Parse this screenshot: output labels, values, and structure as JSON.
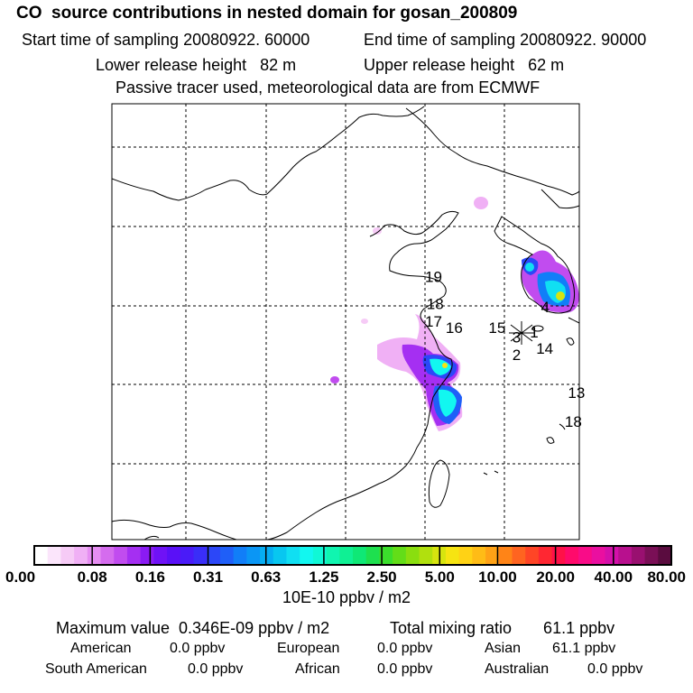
{
  "header": {
    "title": "CO  source contributions in nested domain for gosan_200809",
    "start": "Start time of sampling 20080922. 60000",
    "end": "End time of sampling 20080922. 90000",
    "lower": "Lower release height   82 m",
    "upper": "Upper release height   62 m",
    "tracer": "Passive tracer used, meteorological data are from ECMWF"
  },
  "chart_data": {
    "type": "heatmap",
    "title": "CO  source contributions in nested domain for gosan_200809",
    "colorbar": {
      "unit_label": "10E-10 ppbv / m2",
      "tick_labels": [
        "0.00",
        "0.08",
        "0.16",
        "0.31",
        "0.63",
        "1.25",
        "2.50",
        "5.00",
        "10.00",
        "20.00",
        "40.00",
        "80.00"
      ],
      "colors": [
        "#ffffff",
        "#fbe5fb",
        "#f6cbf6",
        "#f0b0f5",
        "#e68ef2",
        "#d56cee",
        "#c14cef",
        "#a52ff2",
        "#8a1bf4",
        "#6f12f6",
        "#5a10f7",
        "#4a1bf8",
        "#3a2ef8",
        "#2c47f8",
        "#1f5ff8",
        "#117ef8",
        "#0a96f5",
        "#06adf3",
        "#08c7f0",
        "#10dff2",
        "#12f7f0",
        "#10f8d6",
        "#10f5b0",
        "#0ff094",
        "#0fe876",
        "#1ee04f",
        "#3bde2c",
        "#63dd18",
        "#8ade0f",
        "#b1e00e",
        "#d7e40f",
        "#f6e412",
        "#ffd215",
        "#ffbc16",
        "#ffa216",
        "#ff8417",
        "#ff6420",
        "#ff4526",
        "#ff2732",
        "#ff1148",
        "#ff0a6b",
        "#f90c88",
        "#ea0fa0",
        "#d410aa",
        "#b8108e",
        "#991070",
        "#7a0f56",
        "#5a0c3f"
      ]
    },
    "markers": [
      {
        "label": "19",
        "lon": 120.0,
        "lat": 36.5
      },
      {
        "label": "18",
        "lon": 120.1,
        "lat": 34.8
      },
      {
        "label": "17",
        "lon": 120.0,
        "lat": 33.7
      },
      {
        "label": "16",
        "lon": 121.3,
        "lat": 33.3
      },
      {
        "label": "15",
        "lon": 124.0,
        "lat": 33.3
      },
      {
        "label": "3",
        "lon": 125.5,
        "lat": 32.7
      },
      {
        "label": "1",
        "lon": 126.6,
        "lat": 33.0
      },
      {
        "label": "14",
        "lon": 127.0,
        "lat": 32.0
      },
      {
        "label": "2",
        "lon": 125.5,
        "lat": 31.6
      },
      {
        "label": "4",
        "lon": 127.3,
        "lat": 34.6
      },
      {
        "label": "13",
        "lon": 129.0,
        "lat": 29.2
      },
      {
        "label": "18",
        "lon": 128.8,
        "lat": 27.4
      }
    ],
    "receptor": {
      "name": "gosan",
      "lon": 126.2,
      "lat": 33.3
    },
    "max_concentration": 0.346,
    "unit": "10E-10 ppbv / m2"
  },
  "stats": {
    "max_value": "Maximum value  0.346E-09 ppbv / m2",
    "total_mixing": "Total mixing ratio       61.1 ppbv",
    "regions": [
      {
        "name": "American",
        "value": "0.0 ppbv"
      },
      {
        "name": "European",
        "value": "0.0 ppbv"
      },
      {
        "name": "Asian",
        "value": "61.1 ppbv"
      },
      {
        "name": "South American",
        "value": "0.0 ppbv"
      },
      {
        "name": "African",
        "value": "0.0 ppbv"
      },
      {
        "name": "Australian",
        "value": "0.0 ppbv"
      }
    ]
  }
}
